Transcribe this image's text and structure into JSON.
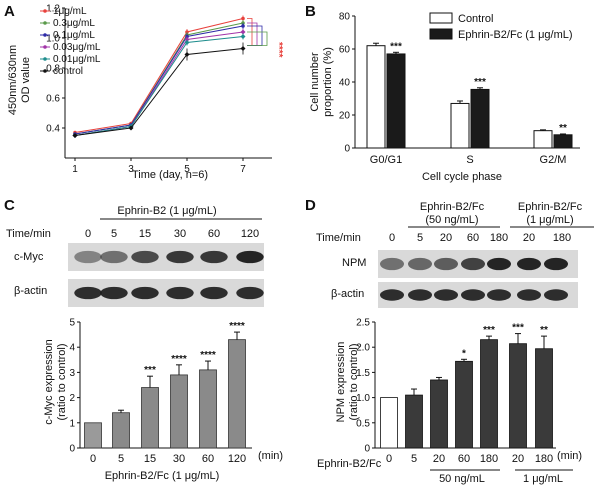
{
  "panels": {
    "A": {
      "label": "A"
    },
    "B": {
      "label": "B"
    },
    "C": {
      "label": "C",
      "header": "Ephrin-B2 (1 μg/mL)",
      "time_label": "Time/min",
      "times": [
        "0",
        "5",
        "15",
        "30",
        "60",
        "120"
      ],
      "blot_rows": [
        "c-Myc",
        "β-actin"
      ]
    },
    "D": {
      "label": "D",
      "header_left": "Ephrin-B2/Fc",
      "header_left2": "(50 ng/mL)",
      "header_right": "Ephrin-B2/Fc",
      "header_right2": "(1 μg/mL)",
      "time_label": "Time/min",
      "times": [
        "0",
        "5",
        "20",
        "60",
        "180",
        "20",
        "180"
      ],
      "blot_rows": [
        "NPM",
        "β-actin"
      ]
    }
  },
  "chart_data": [
    {
      "id": "A",
      "type": "line",
      "title": "",
      "xlabel": "Time  (day, n=6)",
      "ylabel": "450nm/630nm\nOD value",
      "x": [
        1,
        3,
        5,
        7
      ],
      "x_ticks": [
        "1",
        "3",
        "5",
        "7"
      ],
      "ylim": [
        0.2,
        1.2
      ],
      "y_ticks": [
        "0.4",
        "0.6",
        "0.8",
        "1.0",
        "1.2"
      ],
      "series": [
        {
          "name": "1μg/mL",
          "values": [
            0.37,
            0.43,
            1.04,
            1.13
          ],
          "color": "#e8413c",
          "marker": "circle"
        },
        {
          "name": "0.3μg/mL",
          "values": [
            0.36,
            0.42,
            1.02,
            1.1
          ],
          "color": "#5a9a4a",
          "marker": "circle"
        },
        {
          "name": "0.1μg/mL",
          "values": [
            0.36,
            0.42,
            1.01,
            1.08
          ],
          "color": "#2d2aa8",
          "marker": "circle"
        },
        {
          "name": "0.03μg/mL",
          "values": [
            0.35,
            0.41,
            0.99,
            1.04
          ],
          "color": "#a235a8",
          "marker": "diamond"
        },
        {
          "name": "0.01μg/mL",
          "values": [
            0.35,
            0.41,
            0.97,
            1.01
          ],
          "color": "#1e8d8d",
          "marker": "diamond"
        },
        {
          "name": "control",
          "values": [
            0.35,
            0.4,
            0.89,
            0.93
          ],
          "color": "#111111",
          "marker": "diamond"
        }
      ],
      "annotations": [
        "****"
      ]
    },
    {
      "id": "B",
      "type": "bar",
      "title": "",
      "xlabel": "Cell cycle phase",
      "ylabel": "Cell number\nproportion (%)",
      "categories": [
        "G0/G1",
        "S",
        "G2/M"
      ],
      "ylim": [
        0,
        80
      ],
      "y_ticks": [
        "0",
        "20",
        "40",
        "60",
        "80"
      ],
      "series": [
        {
          "name": "Control",
          "values": [
            62,
            27,
            10.5
          ],
          "errors": [
            1.5,
            1.5,
            0.5
          ]
        },
        {
          "name": "Ephrin-B2/Fc (1 μg/mL)",
          "values": [
            57,
            35.5,
            8
          ],
          "errors": [
            1,
            1,
            0.5
          ]
        }
      ],
      "significance": [
        "***",
        "***",
        "**"
      ]
    },
    {
      "id": "C",
      "type": "bar",
      "title": "",
      "xlabel": "Ephrin-B2/Fc (1 μg/mL)",
      "x_unit": "(min)",
      "ylabel": "c-Myc expression\n(ratio to control)",
      "categories": [
        "0",
        "5",
        "15",
        "30",
        "60",
        "120"
      ],
      "values": [
        1.0,
        1.4,
        2.4,
        2.9,
        3.1,
        4.3
      ],
      "errors": [
        0,
        0.1,
        0.45,
        0.4,
        0.35,
        0.3
      ],
      "ylim": [
        0,
        5
      ],
      "y_ticks": [
        "0",
        "1",
        "2",
        "3",
        "4",
        "5"
      ],
      "significance": [
        "",
        "",
        "***",
        "****",
        "****",
        "****"
      ]
    },
    {
      "id": "D",
      "type": "bar",
      "title": "",
      "xlabel": "Ephrin-B2/Fc",
      "x_unit": "(min)",
      "group_labels": [
        "50 ng/mL",
        "1 μg/mL"
      ],
      "ylabel": "NPM expression\n(ratio to control)",
      "categories": [
        "0",
        "5",
        "20",
        "60",
        "180",
        "20",
        "180"
      ],
      "values": [
        1.0,
        1.05,
        1.35,
        1.72,
        2.15,
        2.07,
        1.97
      ],
      "errors": [
        0,
        0.12,
        0.05,
        0.04,
        0.07,
        0.2,
        0.25
      ],
      "ylim": [
        0,
        2.5
      ],
      "y_ticks": [
        "0",
        "0.5",
        "1.0",
        "1.5",
        "2.0",
        "2.5"
      ],
      "significance": [
        "",
        "",
        "",
        "*",
        "***",
        "***",
        "**"
      ]
    }
  ]
}
